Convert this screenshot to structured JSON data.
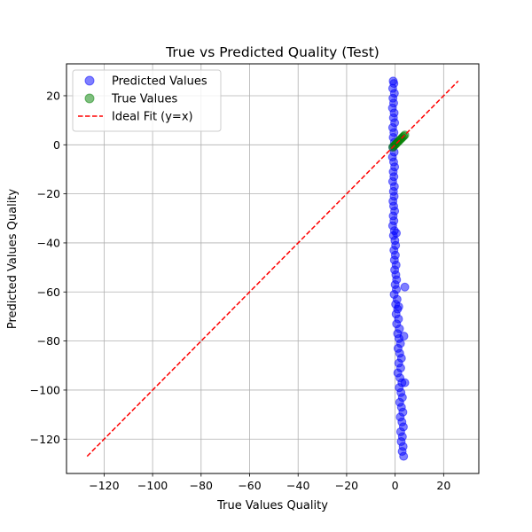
{
  "chart_data": {
    "type": "scatter",
    "title": "True vs Predicted Quality (Test)",
    "xlabel": "True Values Quality",
    "ylabel": "Predicted Values Quality",
    "xlim": [
      -135.5,
      34.5
    ],
    "ylim": [
      -134,
      33
    ],
    "xticks": [
      -120,
      -100,
      -80,
      -60,
      -40,
      -20,
      0,
      20
    ],
    "yticks": [
      -120,
      -100,
      -80,
      -60,
      -40,
      -20,
      0,
      20
    ],
    "grid": true,
    "legend_position": "top-left",
    "colors": {
      "predicted": "#0000ff",
      "true": "#008000",
      "ideal": "#ff0000",
      "grid": "#b0b0b0"
    },
    "series": [
      {
        "name": "Predicted Values",
        "kind": "scatter",
        "points": [
          [
            -0.8,
            26
          ],
          [
            -0.5,
            25
          ],
          [
            -1.0,
            23
          ],
          [
            -0.3,
            21
          ],
          [
            -0.9,
            19
          ],
          [
            -0.6,
            17
          ],
          [
            -1.1,
            15
          ],
          [
            -0.4,
            13
          ],
          [
            -0.7,
            11
          ],
          [
            -0.2,
            9
          ],
          [
            -1.0,
            7
          ],
          [
            -0.5,
            5
          ],
          [
            -0.8,
            3
          ],
          [
            -0.3,
            1
          ],
          [
            -0.9,
            -1
          ],
          [
            -0.4,
            -3
          ],
          [
            -1.1,
            -5
          ],
          [
            -0.6,
            -7
          ],
          [
            -0.2,
            -9
          ],
          [
            -0.8,
            -11
          ],
          [
            -0.5,
            -13
          ],
          [
            -1.0,
            -15
          ],
          [
            -0.3,
            -17
          ],
          [
            -0.7,
            -19
          ],
          [
            -0.4,
            -21
          ],
          [
            -0.9,
            -23
          ],
          [
            -0.6,
            -25
          ],
          [
            -0.2,
            -27
          ],
          [
            -0.8,
            -29
          ],
          [
            -0.5,
            -31
          ],
          [
            -1.0,
            -33
          ],
          [
            -0.3,
            -35
          ],
          [
            -0.7,
            -37
          ],
          [
            -0.1,
            -39
          ],
          [
            0.2,
            -41
          ],
          [
            -0.5,
            -43
          ],
          [
            0.1,
            -45
          ],
          [
            -0.3,
            -47
          ],
          [
            0.4,
            -49
          ],
          [
            -0.2,
            -51
          ],
          [
            0.3,
            -53
          ],
          [
            0.6,
            -55
          ],
          [
            0.0,
            -57
          ],
          [
            0.5,
            -59
          ],
          [
            -0.4,
            -61
          ],
          [
            0.8,
            -63
          ],
          [
            0.2,
            -65
          ],
          [
            1.0,
            -67
          ],
          [
            0.4,
            -69
          ],
          [
            1.4,
            -71
          ],
          [
            0.6,
            -73
          ],
          [
            1.8,
            -75
          ],
          [
            1.0,
            -77
          ],
          [
            1.6,
            -79
          ],
          [
            2.2,
            -81
          ],
          [
            1.2,
            -83
          ],
          [
            1.9,
            -85
          ],
          [
            2.6,
            -87
          ],
          [
            1.5,
            -89
          ],
          [
            2.3,
            -91
          ],
          [
            1.1,
            -93
          ],
          [
            2.0,
            -95
          ],
          [
            2.8,
            -97
          ],
          [
            1.7,
            -99
          ],
          [
            2.4,
            -101
          ],
          [
            3.0,
            -103
          ],
          [
            1.9,
            -105
          ],
          [
            2.6,
            -107
          ],
          [
            3.2,
            -109
          ],
          [
            2.1,
            -111
          ],
          [
            2.8,
            -113
          ],
          [
            3.4,
            -115
          ],
          [
            2.3,
            -117
          ],
          [
            3.0,
            -119
          ],
          [
            2.5,
            -121
          ],
          [
            3.3,
            -123
          ],
          [
            2.9,
            -125
          ],
          [
            3.5,
            -127
          ],
          [
            4.0,
            -58
          ],
          [
            4.0,
            -97
          ],
          [
            0.5,
            -36
          ],
          [
            1.5,
            -66
          ],
          [
            3.6,
            -78
          ]
        ]
      },
      {
        "name": "True Values",
        "kind": "scatter",
        "points": [
          [
            -1.0,
            -1.0
          ],
          [
            -0.5,
            -0.5
          ],
          [
            0.0,
            0.0
          ],
          [
            0.5,
            0.5
          ],
          [
            1.0,
            1.0
          ],
          [
            1.5,
            1.5
          ],
          [
            2.0,
            2.0
          ],
          [
            2.5,
            2.5
          ],
          [
            3.0,
            3.0
          ],
          [
            3.5,
            3.5
          ],
          [
            4.0,
            4.0
          ]
        ]
      },
      {
        "name": "Ideal Fit (y=x)",
        "kind": "line",
        "points": [
          [
            -127,
            -127
          ],
          [
            26,
            26
          ]
        ]
      }
    ]
  }
}
